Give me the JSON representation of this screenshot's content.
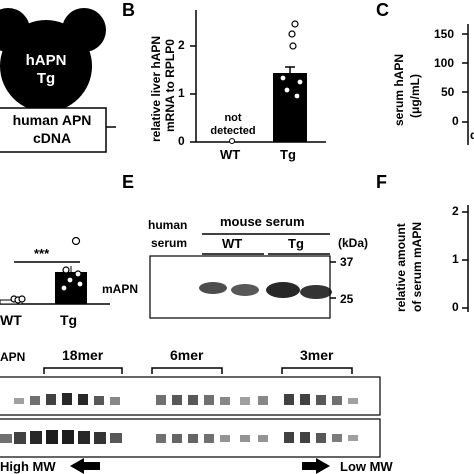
{
  "panels": {
    "A": {
      "mouse_label_1": "hAPN",
      "mouse_label_2": "Tg",
      "construct_line1": "human APN",
      "construct_line2": "cDNA"
    },
    "B": {
      "letter": "B",
      "ylabel_line1": "relative liver hAPN",
      "ylabel_line2": "mRNA to RPLP0",
      "not_detected_1": "not",
      "not_detected_2": "detected",
      "yticks": [
        "0",
        "1",
        "2"
      ],
      "groups": [
        "WT",
        "Tg"
      ]
    },
    "C": {
      "letter": "C",
      "ylabel_line1": "serum hAPN",
      "ylabel_line2": "(μg/mL)",
      "yticks": [
        "0",
        "50",
        "100",
        "150"
      ],
      "partial_text": "d"
    },
    "D": {
      "signif": "***",
      "groups": [
        "WT",
        "Tg"
      ]
    },
    "E": {
      "letter": "E",
      "col_human_1": "human",
      "col_human_2": "serum",
      "col_mouse": "mouse serum",
      "col_wt": "WT",
      "col_tg": "Tg",
      "kda_label": "(kDa)",
      "marker_37": "37",
      "marker_25": "25",
      "row_label": "mAPN"
    },
    "F": {
      "letter": "F",
      "ylabel_line1": "relative amount",
      "ylabel_line2": "of serum mAPN",
      "yticks": [
        "0",
        "1",
        "2"
      ]
    },
    "G": {
      "row_label": "APN",
      "band_18mer": "18mer",
      "band_6mer": "6mer",
      "band_3mer": "3mer",
      "high_mw": "High MW",
      "low_mw": "Low MW"
    }
  },
  "chart_data": [
    {
      "type": "bar",
      "categories": [
        "WT",
        "Tg"
      ],
      "values": [
        0,
        1.6
      ],
      "ylabel": "relative liver hAPN mRNA to RPLP0",
      "ylim": [
        0,
        2.8
      ],
      "points": {
        "Tg": [
          2.7,
          2.35,
          2.0,
          1.85,
          1.4,
          1.25,
          1.0
        ]
      }
    },
    {
      "type": "bar",
      "categories": [
        "WT",
        "Tg"
      ],
      "values": [
        0.05,
        1.0
      ],
      "points": {
        "WT": [
          0.04,
          0.05,
          0.06
        ],
        "Tg": [
          1.95,
          1.15,
          1.05,
          0.9,
          0.8,
          0.7
        ]
      }
    }
  ]
}
